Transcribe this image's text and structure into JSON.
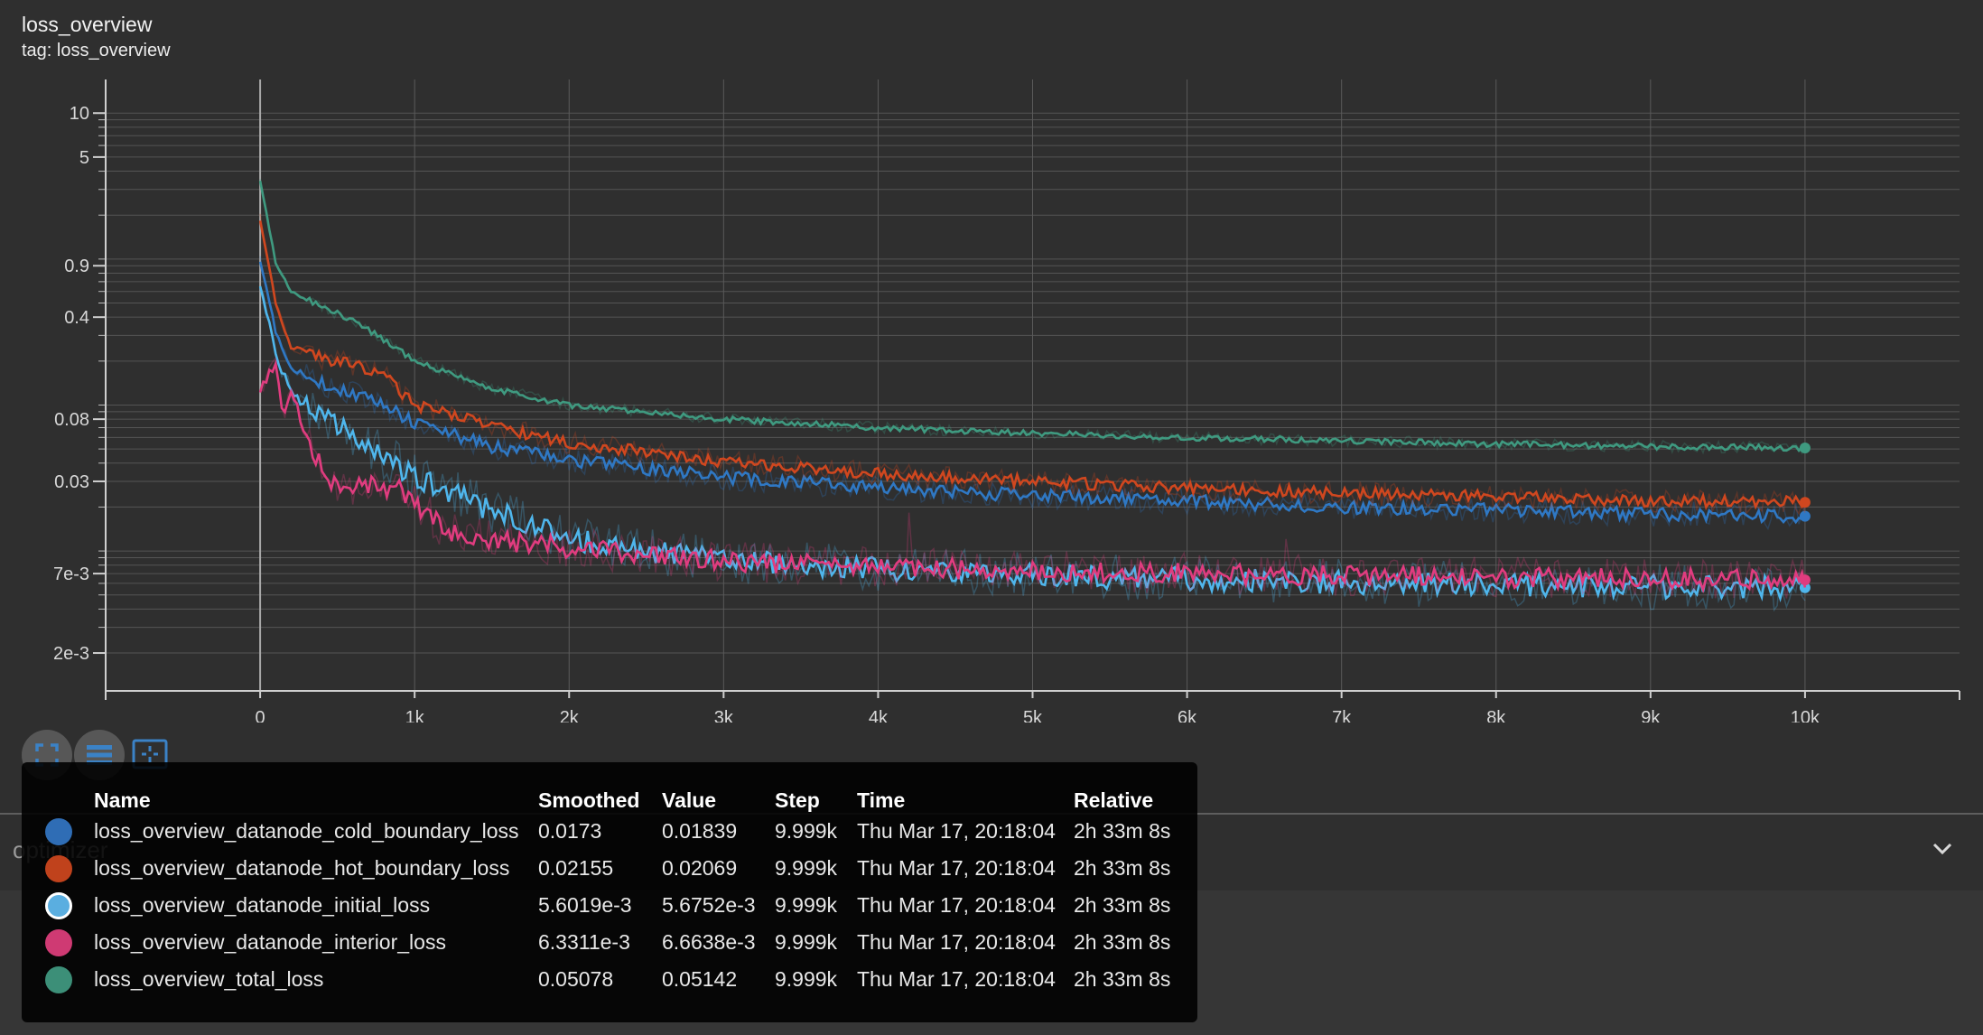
{
  "card": {
    "title": "loss_overview",
    "tag": "tag: loss_overview"
  },
  "chart_data": {
    "type": "line",
    "title": "loss_overview",
    "y_scale": "log",
    "xlim": [
      -1000,
      11000
    ],
    "ylim": [
      0.0011,
      17
    ],
    "x_ticks": [
      0,
      1000,
      2000,
      3000,
      4000,
      5000,
      6000,
      7000,
      8000,
      9000,
      10000
    ],
    "x_tick_labels": [
      "0",
      "1k",
      "2k",
      "3k",
      "4k",
      "5k",
      "6k",
      "7k",
      "8k",
      "9k",
      "10k"
    ],
    "y_ticks": [
      10,
      5,
      0.9,
      0.4,
      0.08,
      0.03,
      0.007,
      0.002
    ],
    "y_tick_labels": [
      "10",
      "5",
      "0.9",
      "0.4",
      "0.08",
      "0.03",
      "7e-3",
      "2e-3"
    ],
    "grid": true,
    "series": [
      {
        "name": "loss_overview_datanode_cold_boundary_loss",
        "color": "#2f78c4",
        "x": [
          0,
          100,
          200,
          400,
          600,
          800,
          1000,
          1500,
          2000,
          3000,
          4000,
          5000,
          6000,
          7000,
          8000,
          9000,
          10000
        ],
        "y": [
          1.0,
          0.32,
          0.18,
          0.14,
          0.12,
          0.1,
          0.075,
          0.052,
          0.042,
          0.032,
          0.027,
          0.024,
          0.022,
          0.02,
          0.019,
          0.0178,
          0.0173
        ]
      },
      {
        "name": "loss_overview_datanode_hot_boundary_loss",
        "color": "#d0471f",
        "x": [
          0,
          100,
          200,
          400,
          600,
          800,
          1000,
          1500,
          2000,
          3000,
          4000,
          5000,
          6000,
          7000,
          8000,
          9000,
          10000
        ],
        "y": [
          1.9,
          0.5,
          0.25,
          0.21,
          0.19,
          0.16,
          0.1,
          0.072,
          0.055,
          0.041,
          0.034,
          0.03,
          0.027,
          0.025,
          0.0235,
          0.022,
          0.02155
        ]
      },
      {
        "name": "loss_overview_datanode_initial_loss",
        "color": "#4fb6ec",
        "x": [
          0,
          100,
          200,
          400,
          600,
          800,
          1000,
          1500,
          2000,
          3000,
          4000,
          5000,
          6000,
          7000,
          8000,
          9000,
          10000
        ],
        "y": [
          0.7,
          0.22,
          0.12,
          0.085,
          0.06,
          0.045,
          0.032,
          0.019,
          0.012,
          0.0085,
          0.0075,
          0.0068,
          0.0064,
          0.0061,
          0.0059,
          0.0057,
          0.0056019
        ]
      },
      {
        "name": "loss_overview_datanode_interior_loss",
        "color": "#e03c7f",
        "x": [
          0,
          100,
          150,
          200,
          300,
          450,
          600,
          750,
          900,
          1000,
          1200,
          1500,
          2000,
          3000,
          4000,
          5000,
          6000,
          7000,
          8000,
          9000,
          10000
        ],
        "y": [
          0.13,
          0.19,
          0.08,
          0.13,
          0.06,
          0.03,
          0.027,
          0.029,
          0.026,
          0.021,
          0.014,
          0.012,
          0.0105,
          0.0085,
          0.0078,
          0.0073,
          0.007,
          0.0068,
          0.0066,
          0.0064,
          0.0063311
        ]
      },
      {
        "name": "loss_overview_total_loss",
        "color": "#3f9a80",
        "x": [
          0,
          100,
          200,
          400,
          600,
          800,
          1000,
          1500,
          2000,
          3000,
          4000,
          5000,
          6000,
          7000,
          8000,
          9000,
          10000
        ],
        "y": [
          3.5,
          0.95,
          0.6,
          0.47,
          0.38,
          0.28,
          0.2,
          0.13,
          0.1,
          0.08,
          0.07,
          0.064,
          0.06,
          0.057,
          0.054,
          0.052,
          0.05078
        ]
      }
    ]
  },
  "tooltip": {
    "headers": {
      "name": "Name",
      "smoothed": "Smoothed",
      "value": "Value",
      "step": "Step",
      "time": "Time",
      "relative": "Relative"
    },
    "rows": [
      {
        "color": "#2f6db5",
        "name": "loss_overview_datanode_cold_boundary_loss",
        "smoothed": "0.0173",
        "value": "0.01839",
        "step": "9.999k",
        "time": "Thu Mar 17, 20:18:04",
        "relative": "2h 33m 8s"
      },
      {
        "color": "#c0421c",
        "name": "loss_overview_datanode_hot_boundary_loss",
        "smoothed": "0.02155",
        "value": "0.02069",
        "step": "9.999k",
        "time": "Thu Mar 17, 20:18:04",
        "relative": "2h 33m 8s"
      },
      {
        "color": "#5aaee0",
        "name": "loss_overview_datanode_initial_loss",
        "smoothed": "5.6019e-3",
        "value": "5.6752e-3",
        "step": "9.999k",
        "time": "Thu Mar 17, 20:18:04",
        "relative": "2h 33m 8s"
      },
      {
        "color": "#cf3a73",
        "name": "loss_overview_datanode_interior_loss",
        "smoothed": "6.3311e-3",
        "value": "6.6638e-3",
        "step": "9.999k",
        "time": "Thu Mar 17, 20:18:04",
        "relative": "2h 33m 8s"
      },
      {
        "color": "#3c8f78",
        "name": "loss_overview_total_loss",
        "smoothed": "0.05078",
        "value": "0.05142",
        "step": "9.999k",
        "time": "Thu Mar 17, 20:18:04",
        "relative": "2h 33m 8s"
      }
    ]
  },
  "section": {
    "label": "optimizer"
  },
  "icons": {
    "fullscreen": "fullscreen-icon",
    "data_table": "data-table-icon",
    "fit_domain": "fit-domain-icon",
    "expand": "chevron-down-icon"
  }
}
